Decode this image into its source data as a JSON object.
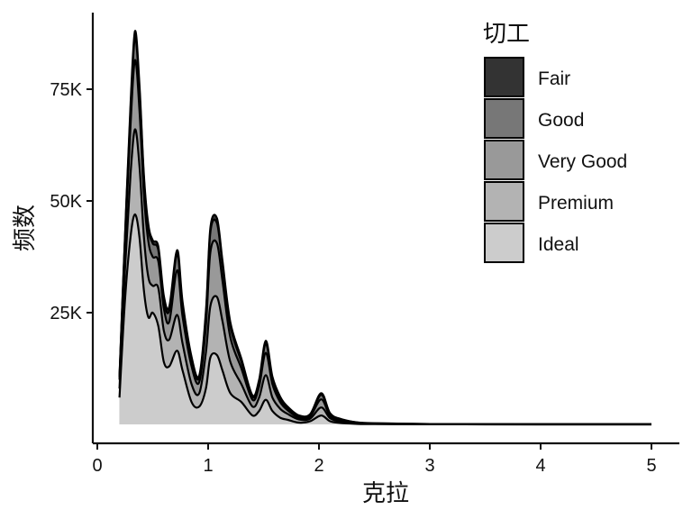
{
  "chart_data": {
    "type": "area",
    "stacked": true,
    "xlabel": "克拉",
    "ylabel": "频数",
    "xlim": [
      0,
      5
    ],
    "ylim": [
      0,
      88000
    ],
    "x_ticks": [
      {
        "value": 0,
        "label": "0"
      },
      {
        "value": 1,
        "label": "1"
      },
      {
        "value": 2,
        "label": "2"
      },
      {
        "value": 3,
        "label": "3"
      },
      {
        "value": 4,
        "label": "4"
      },
      {
        "value": 5,
        "label": "5"
      }
    ],
    "y_ticks": [
      {
        "value": 25000,
        "label": "25K"
      },
      {
        "value": 50000,
        "label": "50K"
      },
      {
        "value": 75000,
        "label": "75K"
      }
    ],
    "grid": false,
    "legend": {
      "title": "切工",
      "position": "right-top"
    },
    "x": [
      0.2,
      0.25,
      0.3,
      0.34,
      0.38,
      0.42,
      0.46,
      0.5,
      0.55,
      0.6,
      0.65,
      0.72,
      0.77,
      0.85,
      0.92,
      0.98,
      1.02,
      1.08,
      1.13,
      1.2,
      1.3,
      1.4,
      1.46,
      1.52,
      1.58,
      1.65,
      1.72,
      1.82,
      1.92,
      2.02,
      2.1,
      2.2,
      2.35,
      2.5,
      2.75,
      3.0,
      3.5,
      4.0,
      4.5,
      5.0
    ],
    "series": [
      {
        "name": "Ideal",
        "color": "#cccccc",
        "values": [
          6000,
          28000,
          42000,
          47000,
          42000,
          30000,
          24000,
          25000,
          22000,
          14000,
          13000,
          16500,
          12000,
          5000,
          4000,
          8000,
          15000,
          15500,
          12000,
          7000,
          5000,
          2000,
          3000,
          5500,
          3000,
          1500,
          1000,
          400,
          700,
          2000,
          700,
          300,
          100,
          60,
          40,
          20,
          10,
          5,
          5,
          5
        ]
      },
      {
        "name": "Premium",
        "color": "#b3b3b3",
        "values": [
          2000,
          7000,
          14000,
          19000,
          16000,
          12000,
          9000,
          6000,
          8500,
          7000,
          6000,
          8000,
          6000,
          4000,
          3000,
          8000,
          11500,
          13000,
          11000,
          7000,
          4000,
          2000,
          3000,
          5500,
          3000,
          2000,
          1300,
          700,
          600,
          1800,
          700,
          300,
          100,
          60,
          40,
          20,
          10,
          5,
          5,
          5
        ]
      },
      {
        "name": "Very Good",
        "color": "#999999",
        "values": [
          2000,
          5500,
          11000,
          15500,
          12500,
          9500,
          8000,
          6500,
          6000,
          5000,
          4000,
          10000,
          6000,
          4000,
          2500,
          6000,
          12000,
          12000,
          9000,
          5500,
          3500,
          1500,
          2500,
          5000,
          3000,
          1500,
          800,
          400,
          500,
          1800,
          500,
          300,
          100,
          60,
          40,
          20,
          10,
          5,
          5,
          5
        ]
      },
      {
        "name": "Good",
        "color": "#777777",
        "values": [
          500,
          1500,
          3500,
          5000,
          4500,
          3500,
          3000,
          3000,
          2500,
          2000,
          2500,
          3500,
          2500,
          1500,
          1000,
          2500,
          4500,
          4500,
          3500,
          2500,
          1500,
          600,
          1000,
          2000,
          1200,
          800,
          500,
          300,
          300,
          1000,
          400,
          200,
          100,
          50,
          30,
          20,
          10,
          5,
          5,
          5
        ]
      },
      {
        "name": "Fair",
        "color": "#333333",
        "values": [
          200,
          600,
          1200,
          1500,
          1200,
          800,
          800,
          700,
          800,
          800,
          900,
          1000,
          800,
          600,
          500,
          800,
          1000,
          1100,
          1000,
          900,
          700,
          400,
          500,
          700,
          500,
          400,
          300,
          200,
          200,
          400,
          200,
          100,
          50,
          30,
          20,
          10,
          5,
          5,
          5,
          5
        ]
      }
    ]
  }
}
